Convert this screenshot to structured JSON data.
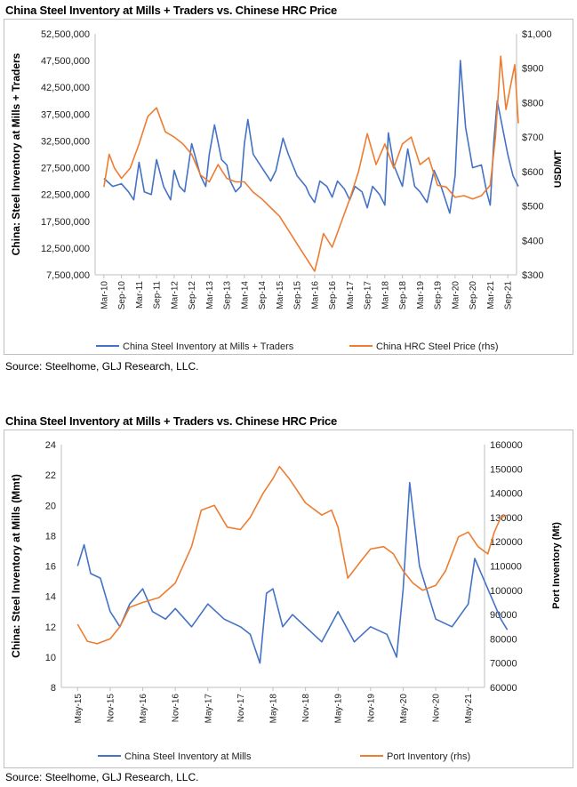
{
  "chart_data": [
    {
      "type": "line",
      "title": "China Steel Inventory at Mills + Traders vs. Chinese HRC Price",
      "ylabel": "China: Steel Inventory at Mills + Traders",
      "ylabel_right": "USD/MT",
      "ylim": [
        7500000,
        52500000
      ],
      "ylim_right": [
        300,
        1000
      ],
      "yticks": [
        "52,500,000",
        "47,500,000",
        "42,500,000",
        "37,500,000",
        "32,500,000",
        "27,500,000",
        "22,500,000",
        "17,500,000",
        "12,500,000",
        "7,500,000"
      ],
      "yticks_right": [
        "$1,000",
        "$900",
        "$800",
        "$700",
        "$600",
        "$500",
        "$400",
        "$300"
      ],
      "categories": [
        "Mar-10",
        "Sep-10",
        "Mar-11",
        "Sep-11",
        "Mar-12",
        "Sep-12",
        "Mar-13",
        "Sep-13",
        "Mar-14",
        "Sep-14",
        "Mar-15",
        "Sep-15",
        "Mar-16",
        "Sep-16",
        "Mar-17",
        "Sep-17",
        "Mar-18",
        "Sep-18",
        "Mar-19",
        "Sep-19",
        "Mar-20",
        "Sep-20",
        "Mar-21",
        "Sep-21"
      ],
      "series": [
        {
          "name": "China Steel Inventory at Mills + Traders",
          "color": "#4472C4",
          "axis": "left",
          "points": [
            [
              0,
              25.5
            ],
            [
              0.5,
              24
            ],
            [
              1,
              24.5
            ],
            [
              1.4,
              23
            ],
            [
              1.7,
              21.5
            ],
            [
              2,
              28.5
            ],
            [
              2.3,
              23
            ],
            [
              2.7,
              22.5
            ],
            [
              3,
              29
            ],
            [
              3.4,
              24
            ],
            [
              3.8,
              21.5
            ],
            [
              4,
              27
            ],
            [
              4.3,
              24
            ],
            [
              4.6,
              23
            ],
            [
              5,
              32
            ],
            [
              5.5,
              26
            ],
            [
              5.8,
              24
            ],
            [
              6,
              30
            ],
            [
              6.3,
              35.5
            ],
            [
              6.7,
              29
            ],
            [
              7,
              28
            ],
            [
              7.2,
              25
            ],
            [
              7.5,
              23
            ],
            [
              7.8,
              24
            ],
            [
              8,
              32
            ],
            [
              8.2,
              36.5
            ],
            [
              8.5,
              30
            ],
            [
              9,
              27.5
            ],
            [
              9.5,
              25
            ],
            [
              9.8,
              27
            ],
            [
              10.2,
              33
            ],
            [
              10.5,
              30
            ],
            [
              11,
              26
            ],
            [
              11.5,
              24
            ],
            [
              11.7,
              22.5
            ],
            [
              12,
              21
            ],
            [
              12.3,
              25
            ],
            [
              12.7,
              24
            ],
            [
              13,
              22
            ],
            [
              13.3,
              25
            ],
            [
              13.7,
              23.5
            ],
            [
              14,
              21.5
            ],
            [
              14.3,
              24
            ],
            [
              14.7,
              23
            ],
            [
              15,
              20
            ],
            [
              15.3,
              24
            ],
            [
              15.7,
              22.5
            ],
            [
              16,
              20.5
            ],
            [
              16.2,
              34
            ],
            [
              16.5,
              28
            ],
            [
              17,
              24
            ],
            [
              17.3,
              31
            ],
            [
              17.7,
              24
            ],
            [
              18,
              23
            ],
            [
              18.4,
              21
            ],
            [
              18.8,
              27
            ],
            [
              19.2,
              24
            ],
            [
              19.7,
              19
            ],
            [
              20,
              26
            ],
            [
              20.3,
              47.5
            ],
            [
              20.6,
              35
            ],
            [
              21,
              27.5
            ],
            [
              21.5,
              28
            ],
            [
              21.8,
              23
            ],
            [
              22,
              20.5
            ],
            [
              22.2,
              32
            ],
            [
              22.4,
              40
            ],
            [
              22.7,
              35
            ],
            [
              23,
              30
            ],
            [
              23.3,
              26
            ],
            [
              23.6,
              24
            ]
          ]
        },
        {
          "name": "China HRC Steel Price (rhs)",
          "color": "#ED7D31",
          "axis": "right",
          "points": [
            [
              0,
              555
            ],
            [
              0.3,
              650
            ],
            [
              0.6,
              610
            ],
            [
              1,
              580
            ],
            [
              1.5,
              610
            ],
            [
              2,
              680
            ],
            [
              2.5,
              760
            ],
            [
              3,
              785
            ],
            [
              3.5,
              715
            ],
            [
              4,
              700
            ],
            [
              4.5,
              680
            ],
            [
              5,
              650
            ],
            [
              5.5,
              590
            ],
            [
              6,
              570
            ],
            [
              6.5,
              620
            ],
            [
              7,
              580
            ],
            [
              7.5,
              570
            ],
            [
              8,
              570
            ],
            [
              8.5,
              540
            ],
            [
              9,
              520
            ],
            [
              9.5,
              495
            ],
            [
              10,
              470
            ],
            [
              10.5,
              430
            ],
            [
              11,
              390
            ],
            [
              11.5,
              350
            ],
            [
              12,
              310
            ],
            [
              12.2,
              350
            ],
            [
              12.5,
              420
            ],
            [
              13,
              380
            ],
            [
              13.5,
              450
            ],
            [
              14,
              520
            ],
            [
              14.5,
              600
            ],
            [
              15,
              710
            ],
            [
              15.5,
              620
            ],
            [
              16,
              680
            ],
            [
              16.5,
              610
            ],
            [
              17,
              680
            ],
            [
              17.5,
              700
            ],
            [
              18,
              620
            ],
            [
              18.5,
              640
            ],
            [
              19,
              560
            ],
            [
              19.5,
              555
            ],
            [
              20,
              525
            ],
            [
              20.5,
              530
            ],
            [
              21,
              520
            ],
            [
              21.5,
              530
            ],
            [
              22,
              560
            ],
            [
              22.3,
              700
            ],
            [
              22.6,
              935
            ],
            [
              22.9,
              780
            ],
            [
              23.2,
              860
            ],
            [
              23.4,
              910
            ],
            [
              23.6,
              740
            ]
          ]
        }
      ]
    },
    {
      "type": "line",
      "title": "China Steel Inventory at Mills + Traders vs. Chinese HRC Price",
      "ylabel": "China: Steel Inventory at Mills (Mmt)",
      "ylabel_right": "Port Inventory (Mt)",
      "ylim": [
        8,
        24
      ],
      "ylim_right": [
        60000,
        160000
      ],
      "yticks": [
        "24",
        "22",
        "20",
        "18",
        "16",
        "14",
        "12",
        "10",
        "8"
      ],
      "yticks_right": [
        "160000",
        "150000",
        "140000",
        "130000",
        "120000",
        "110000",
        "100000",
        "90000",
        "80000",
        "70000",
        "60000"
      ],
      "categories": [
        "May-15",
        "Nov-15",
        "May-16",
        "Nov-16",
        "May-17",
        "Nov-17",
        "May-18",
        "Nov-18",
        "May-19",
        "Nov-19",
        "May-20",
        "Nov-20",
        "May-21"
      ],
      "series": [
        {
          "name": "China Steel Inventory at Mills",
          "color": "#4472C4",
          "axis": "left",
          "points": [
            [
              0,
              16
            ],
            [
              0.2,
              17.4
            ],
            [
              0.4,
              15.5
            ],
            [
              0.7,
              15.2
            ],
            [
              1,
              13
            ],
            [
              1.3,
              12
            ],
            [
              1.6,
              13.5
            ],
            [
              2,
              14.5
            ],
            [
              2.3,
              13
            ],
            [
              2.7,
              12.5
            ],
            [
              3,
              13.2
            ],
            [
              3.5,
              12
            ],
            [
              4,
              13.5
            ],
            [
              4.5,
              12.5
            ],
            [
              5,
              12
            ],
            [
              5.3,
              11.5
            ],
            [
              5.6,
              9.6
            ],
            [
              5.8,
              14.2
            ],
            [
              6,
              14.5
            ],
            [
              6.3,
              12
            ],
            [
              6.6,
              12.8
            ],
            [
              7,
              12
            ],
            [
              7.5,
              11
            ],
            [
              8,
              13
            ],
            [
              8.5,
              11
            ],
            [
              9,
              12
            ],
            [
              9.5,
              11.5
            ],
            [
              9.8,
              10
            ],
            [
              10,
              14.5
            ],
            [
              10.2,
              21.5
            ],
            [
              10.5,
              16
            ],
            [
              11,
              12.5
            ],
            [
              11.5,
              12
            ],
            [
              12,
              13.5
            ],
            [
              12.2,
              16.5
            ],
            [
              12.5,
              15
            ],
            [
              12.8,
              13.5
            ],
            [
              13,
              12.5
            ],
            [
              13.2,
              11.8
            ]
          ]
        },
        {
          "name": "Port Inventory (rhs)",
          "color": "#ED7D31",
          "axis": "right",
          "points": [
            [
              0,
              86000
            ],
            [
              0.3,
              79000
            ],
            [
              0.6,
              78000
            ],
            [
              1,
              80000
            ],
            [
              1.3,
              85000
            ],
            [
              1.6,
              93000
            ],
            [
              2,
              95000
            ],
            [
              2.5,
              97000
            ],
            [
              3,
              103000
            ],
            [
              3.5,
              118000
            ],
            [
              3.8,
              133000
            ],
            [
              4.2,
              135000
            ],
            [
              4.6,
              126000
            ],
            [
              5,
              125000
            ],
            [
              5.3,
              130000
            ],
            [
              5.7,
              140000
            ],
            [
              6,
              146000
            ],
            [
              6.2,
              151000
            ],
            [
              6.5,
              146000
            ],
            [
              7,
              136000
            ],
            [
              7.5,
              131000
            ],
            [
              7.8,
              133000
            ],
            [
              8,
              126000
            ],
            [
              8.3,
              105000
            ],
            [
              8.7,
              112000
            ],
            [
              9,
              117000
            ],
            [
              9.4,
              118000
            ],
            [
              9.7,
              115000
            ],
            [
              10,
              108000
            ],
            [
              10.3,
              103000
            ],
            [
              10.6,
              100000
            ],
            [
              11,
              102000
            ],
            [
              11.3,
              108000
            ],
            [
              11.7,
              122000
            ],
            [
              12,
              124000
            ],
            [
              12.3,
              118000
            ],
            [
              12.6,
              115000
            ],
            [
              12.8,
              124000
            ],
            [
              13,
              130000
            ],
            [
              13.2,
              131000
            ]
          ]
        }
      ]
    }
  ],
  "sources": [
    "Source: Steelhome, GLJ Research, LLC.",
    "Source: Steelhome, GLJ Research, LLC."
  ]
}
